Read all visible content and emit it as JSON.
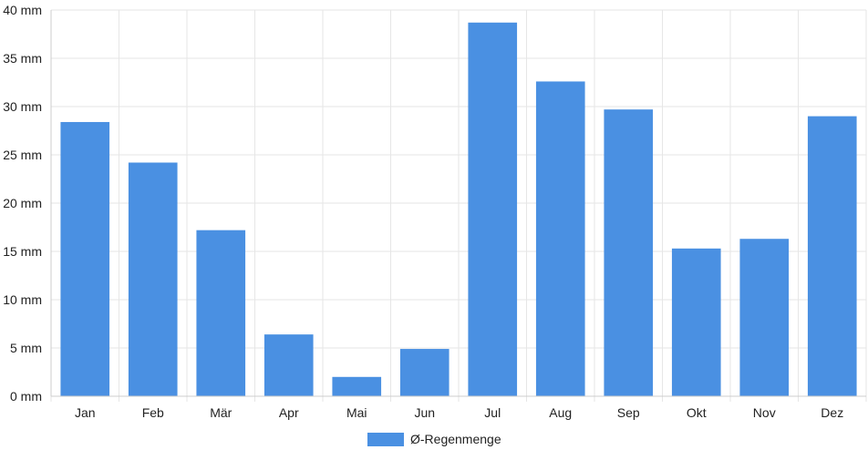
{
  "chart_data": {
    "type": "bar",
    "categories": [
      "Jan",
      "Feb",
      "Mär",
      "Apr",
      "Mai",
      "Jun",
      "Jul",
      "Aug",
      "Sep",
      "Okt",
      "Nov",
      "Dez"
    ],
    "series": [
      {
        "name": "Ø-Regenmenge",
        "values": [
          28.4,
          24.2,
          17.2,
          6.4,
          2.0,
          4.9,
          38.7,
          32.6,
          29.7,
          15.3,
          16.3,
          29.0
        ],
        "color": "#4a90e2"
      }
    ],
    "ylim": [
      0,
      40
    ],
    "ytick_labels": [
      "0 mm",
      "5 mm",
      "10 mm",
      "15 mm",
      "20 mm",
      "25 mm",
      "30 mm",
      "35 mm",
      "40 mm"
    ],
    "grid": true,
    "legend": "bottom-center",
    "colors": {
      "grid": "#e6e6e6",
      "axis": "#cccccc",
      "text": "#222222"
    }
  }
}
